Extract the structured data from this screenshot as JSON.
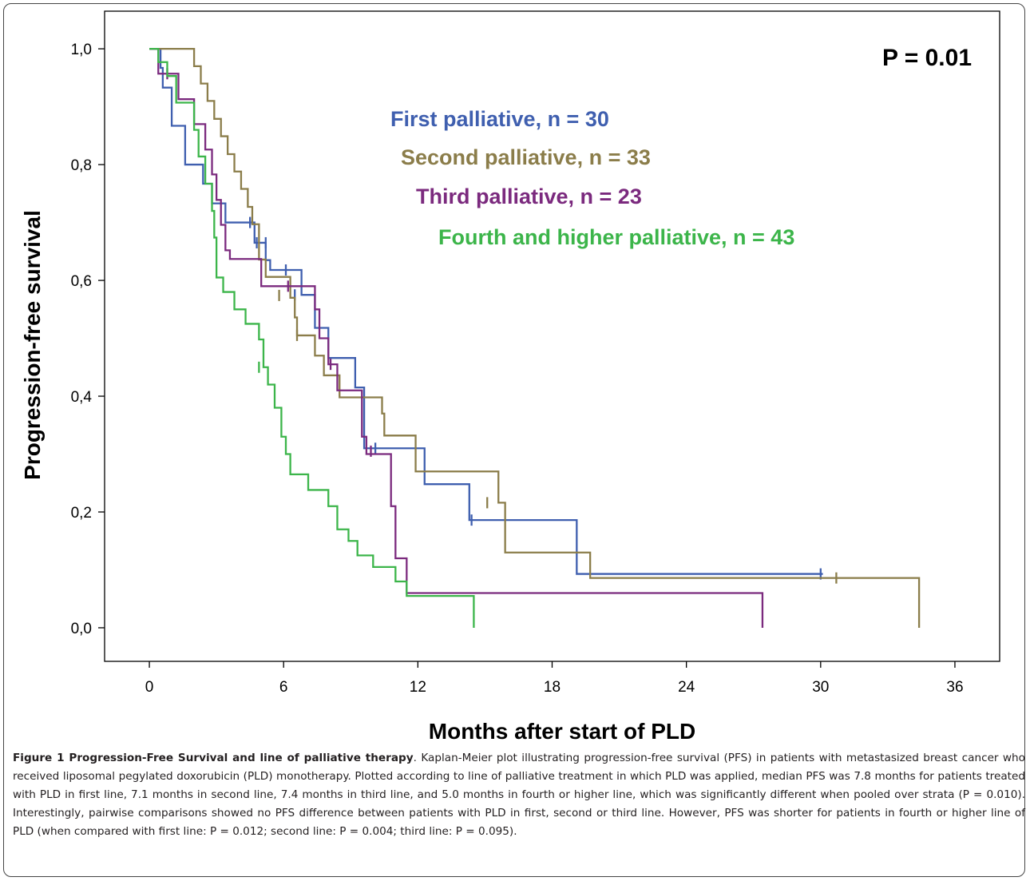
{
  "chart_data": {
    "type": "line",
    "subtype": "kaplan-meier step",
    "xlabel": "Months after start of PLD",
    "ylabel": "Progression-free survival",
    "xlim": [
      -2,
      38
    ],
    "ylim": [
      -0.058,
      1.065
    ],
    "x_ticks": [
      0,
      6,
      12,
      18,
      24,
      30,
      36
    ],
    "y_ticks": [
      0.0,
      0.2,
      0.4,
      0.6,
      0.8,
      1.0
    ],
    "y_tick_labels": [
      "0,0",
      "0,2",
      "0,4",
      "0,6",
      "0,8",
      "1,0"
    ],
    "annotation": "P = 0.01",
    "grid": false,
    "legend_position": "upper-right (text labels)",
    "series": [
      {
        "name": "First palliative, n = 30",
        "color": "#3f5faf",
        "steps": [
          [
            0,
            1.0
          ],
          [
            0.5,
            0.967
          ],
          [
            0.6,
            0.933
          ],
          [
            1.0,
            0.867
          ],
          [
            1.6,
            0.8
          ],
          [
            2.4,
            0.767
          ],
          [
            2.8,
            0.733
          ],
          [
            3.4,
            0.7
          ],
          [
            4.4,
            0.7
          ],
          [
            4.7,
            0.665
          ],
          [
            5.2,
            0.635
          ],
          [
            5.4,
            0.618
          ],
          [
            6.8,
            0.575
          ],
          [
            7.4,
            0.518
          ],
          [
            8.0,
            0.466
          ],
          [
            9.2,
            0.415
          ],
          [
            9.6,
            0.31
          ],
          [
            12.3,
            0.248
          ],
          [
            14.3,
            0.186
          ],
          [
            19.1,
            0.093
          ],
          [
            30.1,
            0.093
          ]
        ],
        "censored": [
          [
            4.5,
            0.7
          ],
          [
            4.8,
            0.665
          ],
          [
            5.2,
            0.665
          ],
          [
            6.1,
            0.618
          ],
          [
            6.5,
            0.575
          ],
          [
            10.1,
            0.31
          ],
          [
            14.4,
            0.186
          ],
          [
            30.0,
            0.093
          ]
        ]
      },
      {
        "name": "Second palliative, n = 33",
        "color": "#8b7d4a",
        "steps": [
          [
            0,
            1.0
          ],
          [
            0.5,
            1.0
          ],
          [
            2.0,
            0.97
          ],
          [
            2.3,
            0.94
          ],
          [
            2.6,
            0.91
          ],
          [
            2.9,
            0.879
          ],
          [
            3.2,
            0.849
          ],
          [
            3.5,
            0.818
          ],
          [
            3.8,
            0.788
          ],
          [
            4.1,
            0.758
          ],
          [
            4.4,
            0.727
          ],
          [
            4.6,
            0.697
          ],
          [
            4.9,
            0.636
          ],
          [
            5.2,
            0.606
          ],
          [
            6.3,
            0.57
          ],
          [
            6.5,
            0.536
          ],
          [
            6.6,
            0.505
          ],
          [
            7.4,
            0.47
          ],
          [
            7.8,
            0.436
          ],
          [
            8.5,
            0.398
          ],
          [
            10.4,
            0.37
          ],
          [
            10.5,
            0.332
          ],
          [
            11.9,
            0.27
          ],
          [
            15.6,
            0.216
          ],
          [
            15.9,
            0.13
          ],
          [
            19.7,
            0.086
          ],
          [
            34.4,
            0.086
          ],
          [
            34.4,
            0.0
          ]
        ],
        "censored": [
          [
            5.8,
            0.574
          ],
          [
            6.6,
            0.505
          ],
          [
            15.1,
            0.216
          ],
          [
            30.7,
            0.086
          ]
        ]
      },
      {
        "name": "Third palliative, n = 23",
        "color": "#7b2a7e",
        "steps": [
          [
            0,
            1.0
          ],
          [
            0.4,
            0.957
          ],
          [
            0.9,
            0.957
          ],
          [
            1.3,
            0.913
          ],
          [
            2.0,
            0.87
          ],
          [
            2.5,
            0.826
          ],
          [
            2.8,
            0.783
          ],
          [
            3.0,
            0.739
          ],
          [
            3.2,
            0.696
          ],
          [
            3.4,
            0.652
          ],
          [
            3.6,
            0.637
          ],
          [
            4.7,
            0.637
          ],
          [
            5.0,
            0.59
          ],
          [
            7.4,
            0.55
          ],
          [
            7.6,
            0.5
          ],
          [
            8.0,
            0.455
          ],
          [
            8.4,
            0.41
          ],
          [
            9.5,
            0.33
          ],
          [
            9.7,
            0.3
          ],
          [
            10.8,
            0.21
          ],
          [
            11.0,
            0.12
          ],
          [
            11.5,
            0.06
          ],
          [
            27.4,
            0.06
          ],
          [
            27.4,
            0.0
          ]
        ],
        "censored": [
          [
            0.8,
            0.957
          ],
          [
            6.2,
            0.59
          ],
          [
            8.1,
            0.455
          ],
          [
            9.9,
            0.305
          ]
        ]
      },
      {
        "name": "Fourth and higher palliative, n = 43",
        "color": "#3cb54a",
        "steps": [
          [
            0,
            1.0
          ],
          [
            0.4,
            0.977
          ],
          [
            0.8,
            0.953
          ],
          [
            1.2,
            0.907
          ],
          [
            2.0,
            0.86
          ],
          [
            2.2,
            0.814
          ],
          [
            2.5,
            0.767
          ],
          [
            2.8,
            0.72
          ],
          [
            2.9,
            0.674
          ],
          [
            3.0,
            0.605
          ],
          [
            3.3,
            0.58
          ],
          [
            3.8,
            0.55
          ],
          [
            4.3,
            0.525
          ],
          [
            4.9,
            0.498
          ],
          [
            5.1,
            0.45
          ],
          [
            5.3,
            0.42
          ],
          [
            5.6,
            0.38
          ],
          [
            5.9,
            0.33
          ],
          [
            6.1,
            0.3
          ],
          [
            6.3,
            0.265
          ],
          [
            7.1,
            0.238
          ],
          [
            8.0,
            0.21
          ],
          [
            8.4,
            0.17
          ],
          [
            8.9,
            0.15
          ],
          [
            9.3,
            0.125
          ],
          [
            10.0,
            0.105
          ],
          [
            11.0,
            0.08
          ],
          [
            11.5,
            0.055
          ],
          [
            14.5,
            0.055
          ],
          [
            14.5,
            0.0
          ]
        ],
        "censored": [
          [
            4.9,
            0.45
          ]
        ]
      }
    ]
  },
  "caption": {
    "title": "Figure 1 Progression-Free Survival and line of palliative therapy",
    "text": ". Kaplan-Meier plot illustrating progression-free survival (PFS) in patients with metastasized breast cancer who received liposomal pegylated doxorubicin (PLD) monotherapy. Plotted according to line of palliative treatment in which PLD was applied, median PFS was 7.8 months for patients treated with PLD in first line, 7.1 months in second line, 7.4 months in third line, and 5.0 months in fourth or higher line, which was significantly different when pooled over strata (P = 0.010). Interestingly, pairwise comparisons showed no PFS difference between patients with PLD in first, second or third line. However, PFS was shorter for patients in fourth or higher line of PLD (when compared with first line: P = 0.012; second line: P = 0.004; third line: P = 0.095)."
  }
}
